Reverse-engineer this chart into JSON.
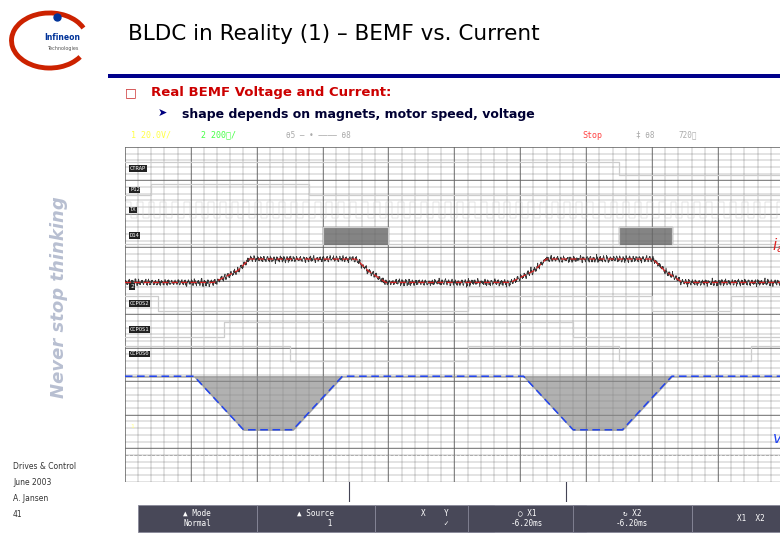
{
  "title": "BLDC in Reality (1) – BEMF vs. Current",
  "bullet1": "Real BEMF Voltage and Current:",
  "bullet2": "shape depends on magnets, motor speed, voltage",
  "left_panel_bg": "#c8cfe0",
  "slide_bg": "#ffffff",
  "title_color": "#000000",
  "bullet1_color": "#cc0000",
  "bullet2_color": "#000033",
  "rule_color": "#00008b",
  "osc_bg": "#282828",
  "grid_color": "#505050",
  "fine_grid_color": "#3a3a3a",
  "header_bg": "#101018",
  "meas_bg": "#101018",
  "btn_bg": "#282830",
  "ia_red": "#dd2222",
  "ia_dark": "#222222",
  "via_blue": "#2244ee",
  "via_fill": "#888888",
  "sig_color": "#cccccc",
  "bottom_text_color": "#000000",
  "never_stop_color": "#b0b8cc",
  "logo_circle_color": "#cc2200",
  "logo_text_color": "#003399"
}
